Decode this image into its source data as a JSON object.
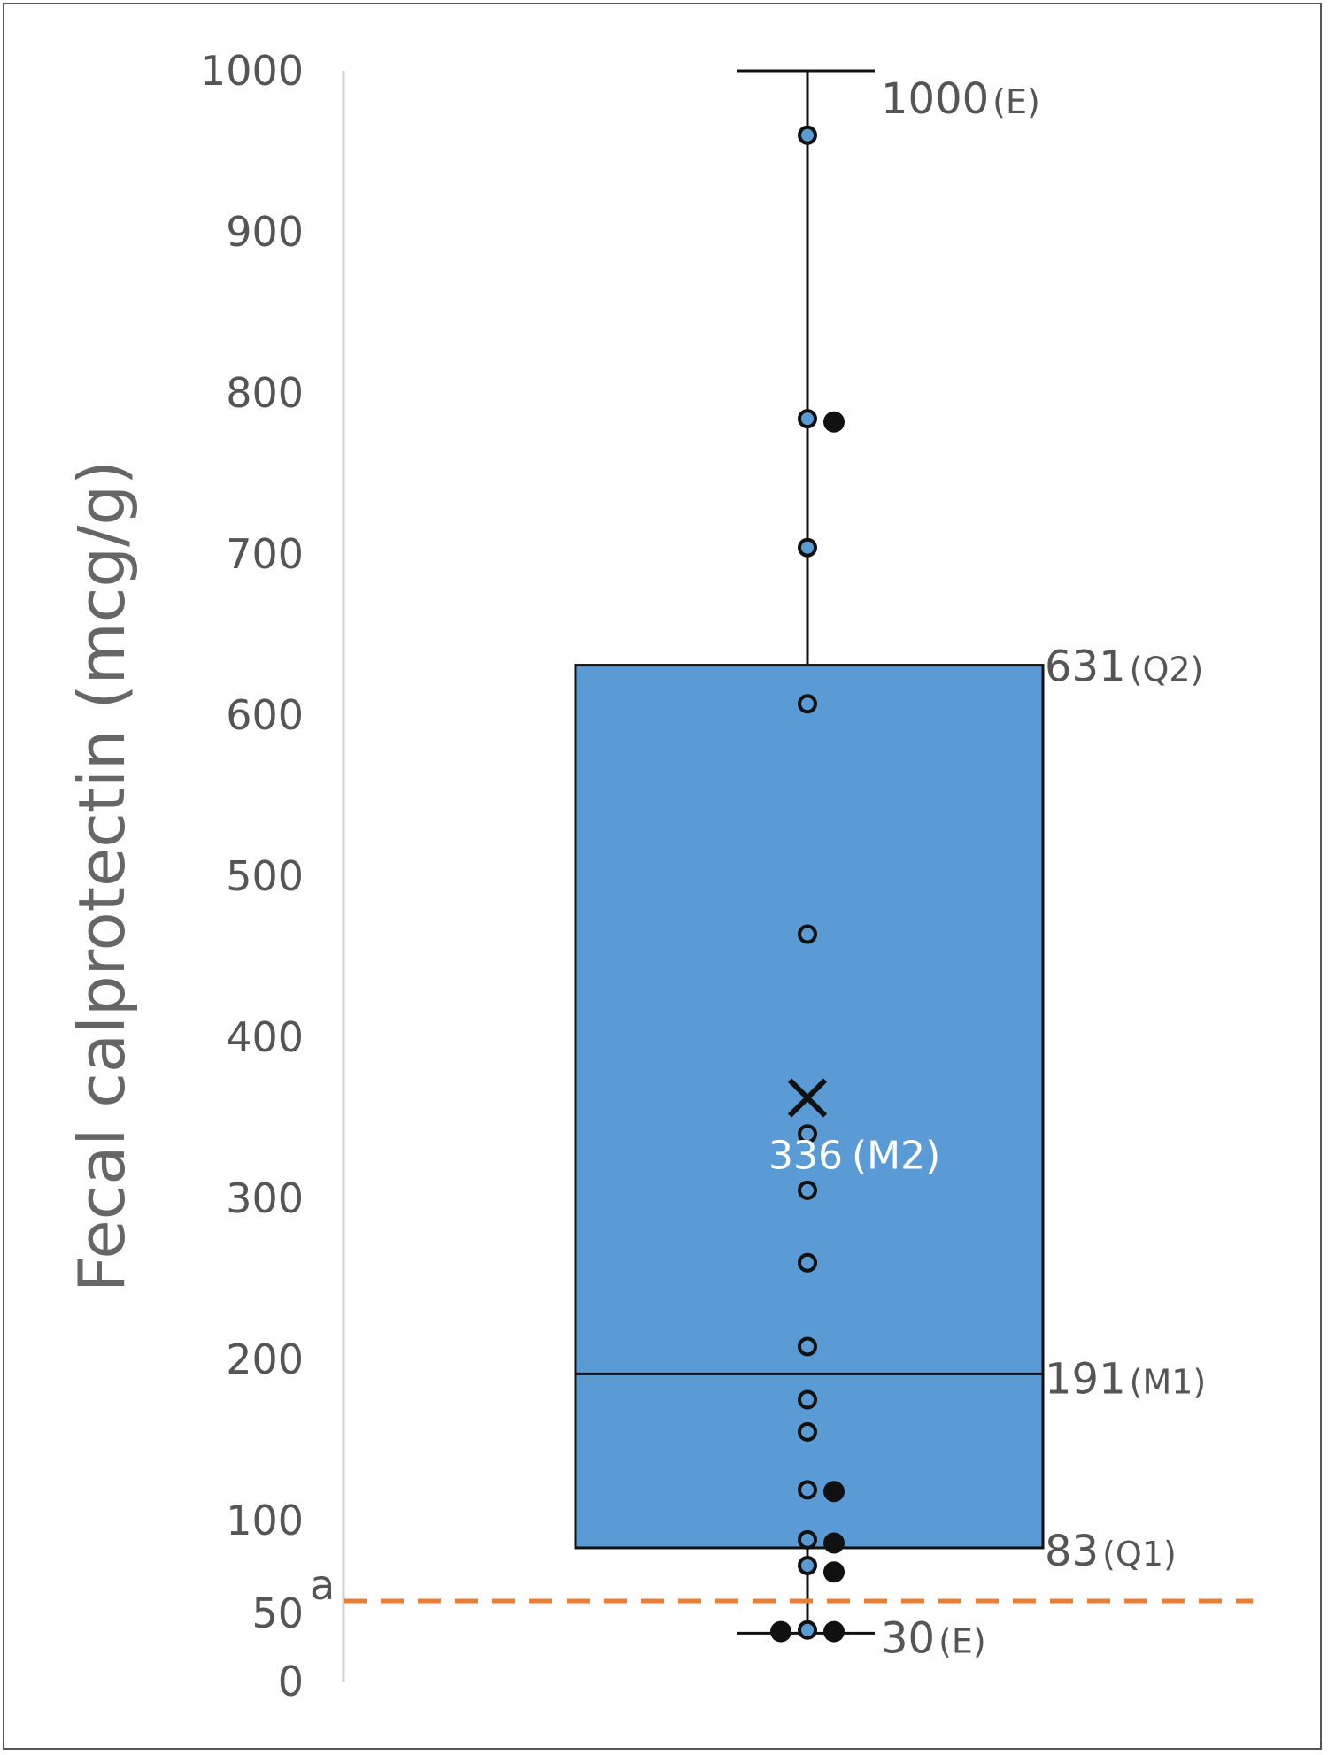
{
  "chart_data": {
    "type": "box",
    "ylabel": "Fecal calprotectin (mcg/g)",
    "ylim": [
      0,
      1000
    ],
    "yticks": [
      "1000",
      "900",
      "800",
      "700",
      "600",
      "500",
      "400",
      "300",
      "200",
      "100",
      "0"
    ],
    "ytick_values": [
      1000,
      900,
      800,
      700,
      600,
      500,
      400,
      300,
      200,
      100,
      0
    ],
    "extra_tick": {
      "value": 50,
      "label": "50",
      "superscript": "a"
    },
    "box": {
      "whisker_low": 30,
      "q1": 83,
      "median": 191,
      "q3": 631,
      "whisker_high": 1000,
      "mean": 336,
      "color": "#5b9bd5"
    },
    "annotations": {
      "whisker_high": {
        "value": "1000",
        "tag": "(E)"
      },
      "q3": {
        "value": "631",
        "tag": "(Q2)"
      },
      "median": {
        "value": "191",
        "tag": "(M1)"
      },
      "q1": {
        "value": "83",
        "tag": "(Q1)"
      },
      "whisker_low": {
        "value": "30",
        "tag": "(E)"
      },
      "mean": {
        "value": "336",
        "tag": "(M2)"
      }
    },
    "reference_line": {
      "value": 50,
      "color": "#ed7d31",
      "style": "dashed"
    },
    "points_blue": [
      960,
      784,
      704,
      607,
      464,
      340,
      305,
      260,
      208,
      175,
      155,
      119,
      88,
      72,
      32
    ],
    "points_black": [
      {
        "value": 782,
        "offset": 1
      },
      {
        "value": 118,
        "offset": 1
      },
      {
        "value": 86,
        "offset": 1
      },
      {
        "value": 68,
        "offset": 1
      },
      {
        "value": 31,
        "offset": -1
      },
      {
        "value": 31,
        "offset": 1
      }
    ]
  }
}
